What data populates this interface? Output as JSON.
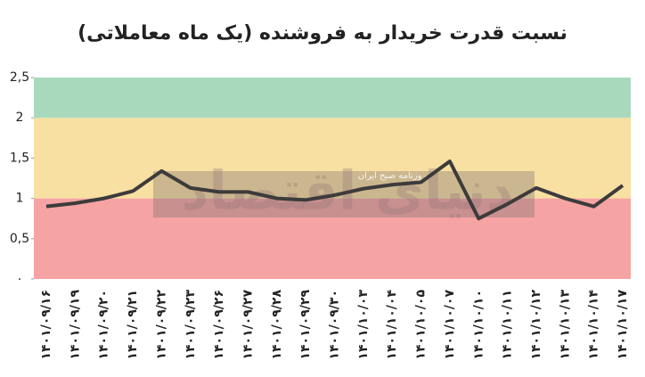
{
  "chart_data": {
    "type": "line",
    "title": "نسبت قدرت خریدار به فروشنده (یک ماه معاملاتی)",
    "categories": [
      "۱۴۰۱/۰۹/۱۶",
      "۱۴۰۱/۰۹/۱۹",
      "۱۴۰۱/۰۹/۲۰",
      "۱۴۰۱/۰۹/۲۱",
      "۱۴۰۱/۰۹/۲۲",
      "۱۴۰۱/۰۹/۲۳",
      "۱۴۰۱/۰۹/۲۶",
      "۱۴۰۱/۰۹/۲۷",
      "۱۴۰۱/۰۹/۲۸",
      "۱۴۰۱/۰۹/۲۹",
      "۱۴۰۱/۰۹/۳۰",
      "۱۴۰۱/۱۰/۰۳",
      "۱۴۰۱/۱۰/۰۴",
      "۱۴۰۱/۱۰/۰۵",
      "۱۴۰۱/۱۰/۰۷",
      "۱۴۰۱/۱۰/۱۰",
      "۱۴۰۱/۱۰/۱۱",
      "۱۴۰۱/۱۰/۱۲",
      "۱۴۰۱/۱۰/۱۳",
      "۱۴۰۱/۱۰/۱۴",
      "۱۴۰۱/۱۰/۱۷"
    ],
    "values": [
      0.9,
      0.94,
      1.0,
      1.09,
      1.34,
      1.13,
      1.08,
      1.08,
      1.0,
      0.98,
      1.04,
      1.12,
      1.17,
      1.2,
      1.46,
      0.75,
      0.93,
      1.13,
      1.0,
      0.9,
      1.16
    ],
    "color": "#3d3b3b",
    "ylim": [
      0,
      2.5
    ],
    "yticks": [
      {
        "value": 0,
        "label": "۰"
      },
      {
        "value": 0.5,
        "label": "0,5"
      },
      1,
      {
        "value": 1.5,
        "label": "1,5"
      },
      2,
      {
        "value": 2.5,
        "label": "2,5"
      }
    ],
    "bands": [
      {
        "from": 0,
        "to": 1,
        "color": "#f5a3a3"
      },
      {
        "from": 1,
        "to": 2,
        "color": "#f8dfa2"
      },
      {
        "from": 2,
        "to": 2.5,
        "color": "#a9d9bd"
      }
    ],
    "watermark": [
      "دنیای اقتصاد",
      "روزنامه صبح ایران"
    ]
  }
}
